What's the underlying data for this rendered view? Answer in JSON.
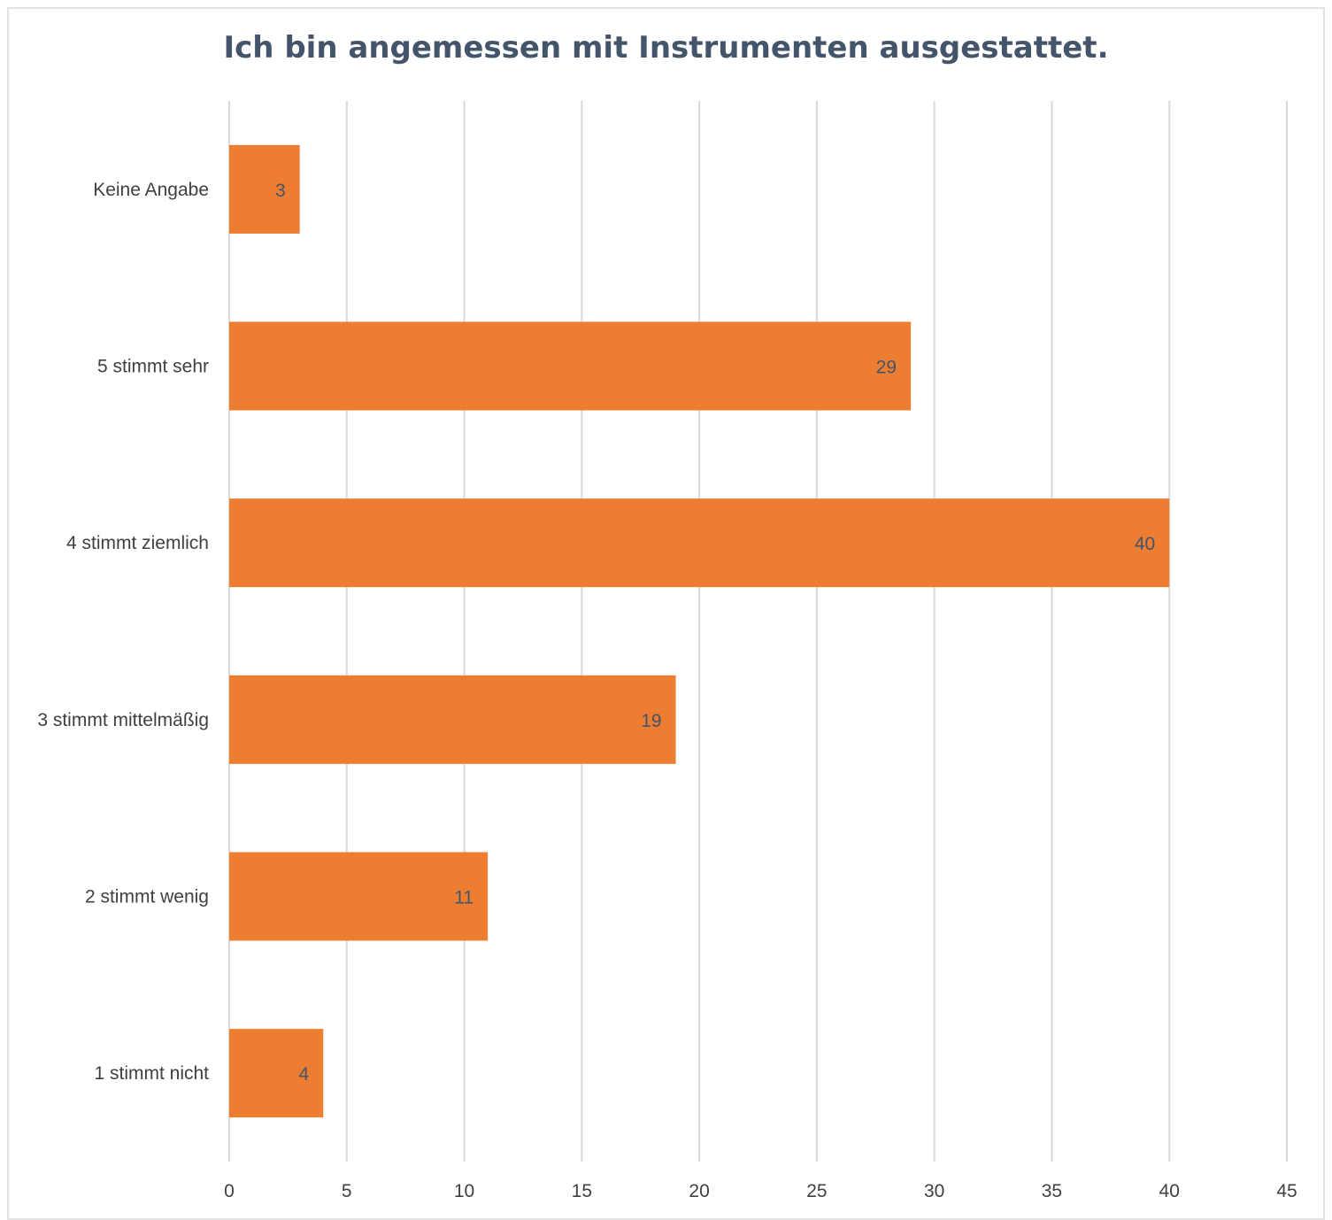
{
  "chart_data": {
    "type": "bar",
    "orientation": "horizontal",
    "title": "Ich bin angemessen mit Instrumenten ausgestattet.",
    "categories": [
      "Keine Angabe",
      "5 stimmt sehr",
      "4 stimmt ziemlich",
      "3 stimmt mittelmäßig",
      "2 stimmt wenig",
      "1 stimmt nicht"
    ],
    "values": [
      3,
      29,
      40,
      19,
      11,
      4
    ],
    "data_labels": [
      "3",
      "29",
      "40",
      "19",
      "11",
      "4"
    ],
    "xlim": [
      0,
      45
    ],
    "x_ticks": [
      "0",
      "5",
      "10",
      "15",
      "20",
      "25",
      "30",
      "35",
      "40",
      "45"
    ],
    "xlabel": "",
    "ylabel": "",
    "grid": "vertical",
    "legend": "none",
    "bar_color": "#ed7d31",
    "grid_color": "#d9d9d9",
    "text_color": "#44546a",
    "label_color": "#404040"
  }
}
